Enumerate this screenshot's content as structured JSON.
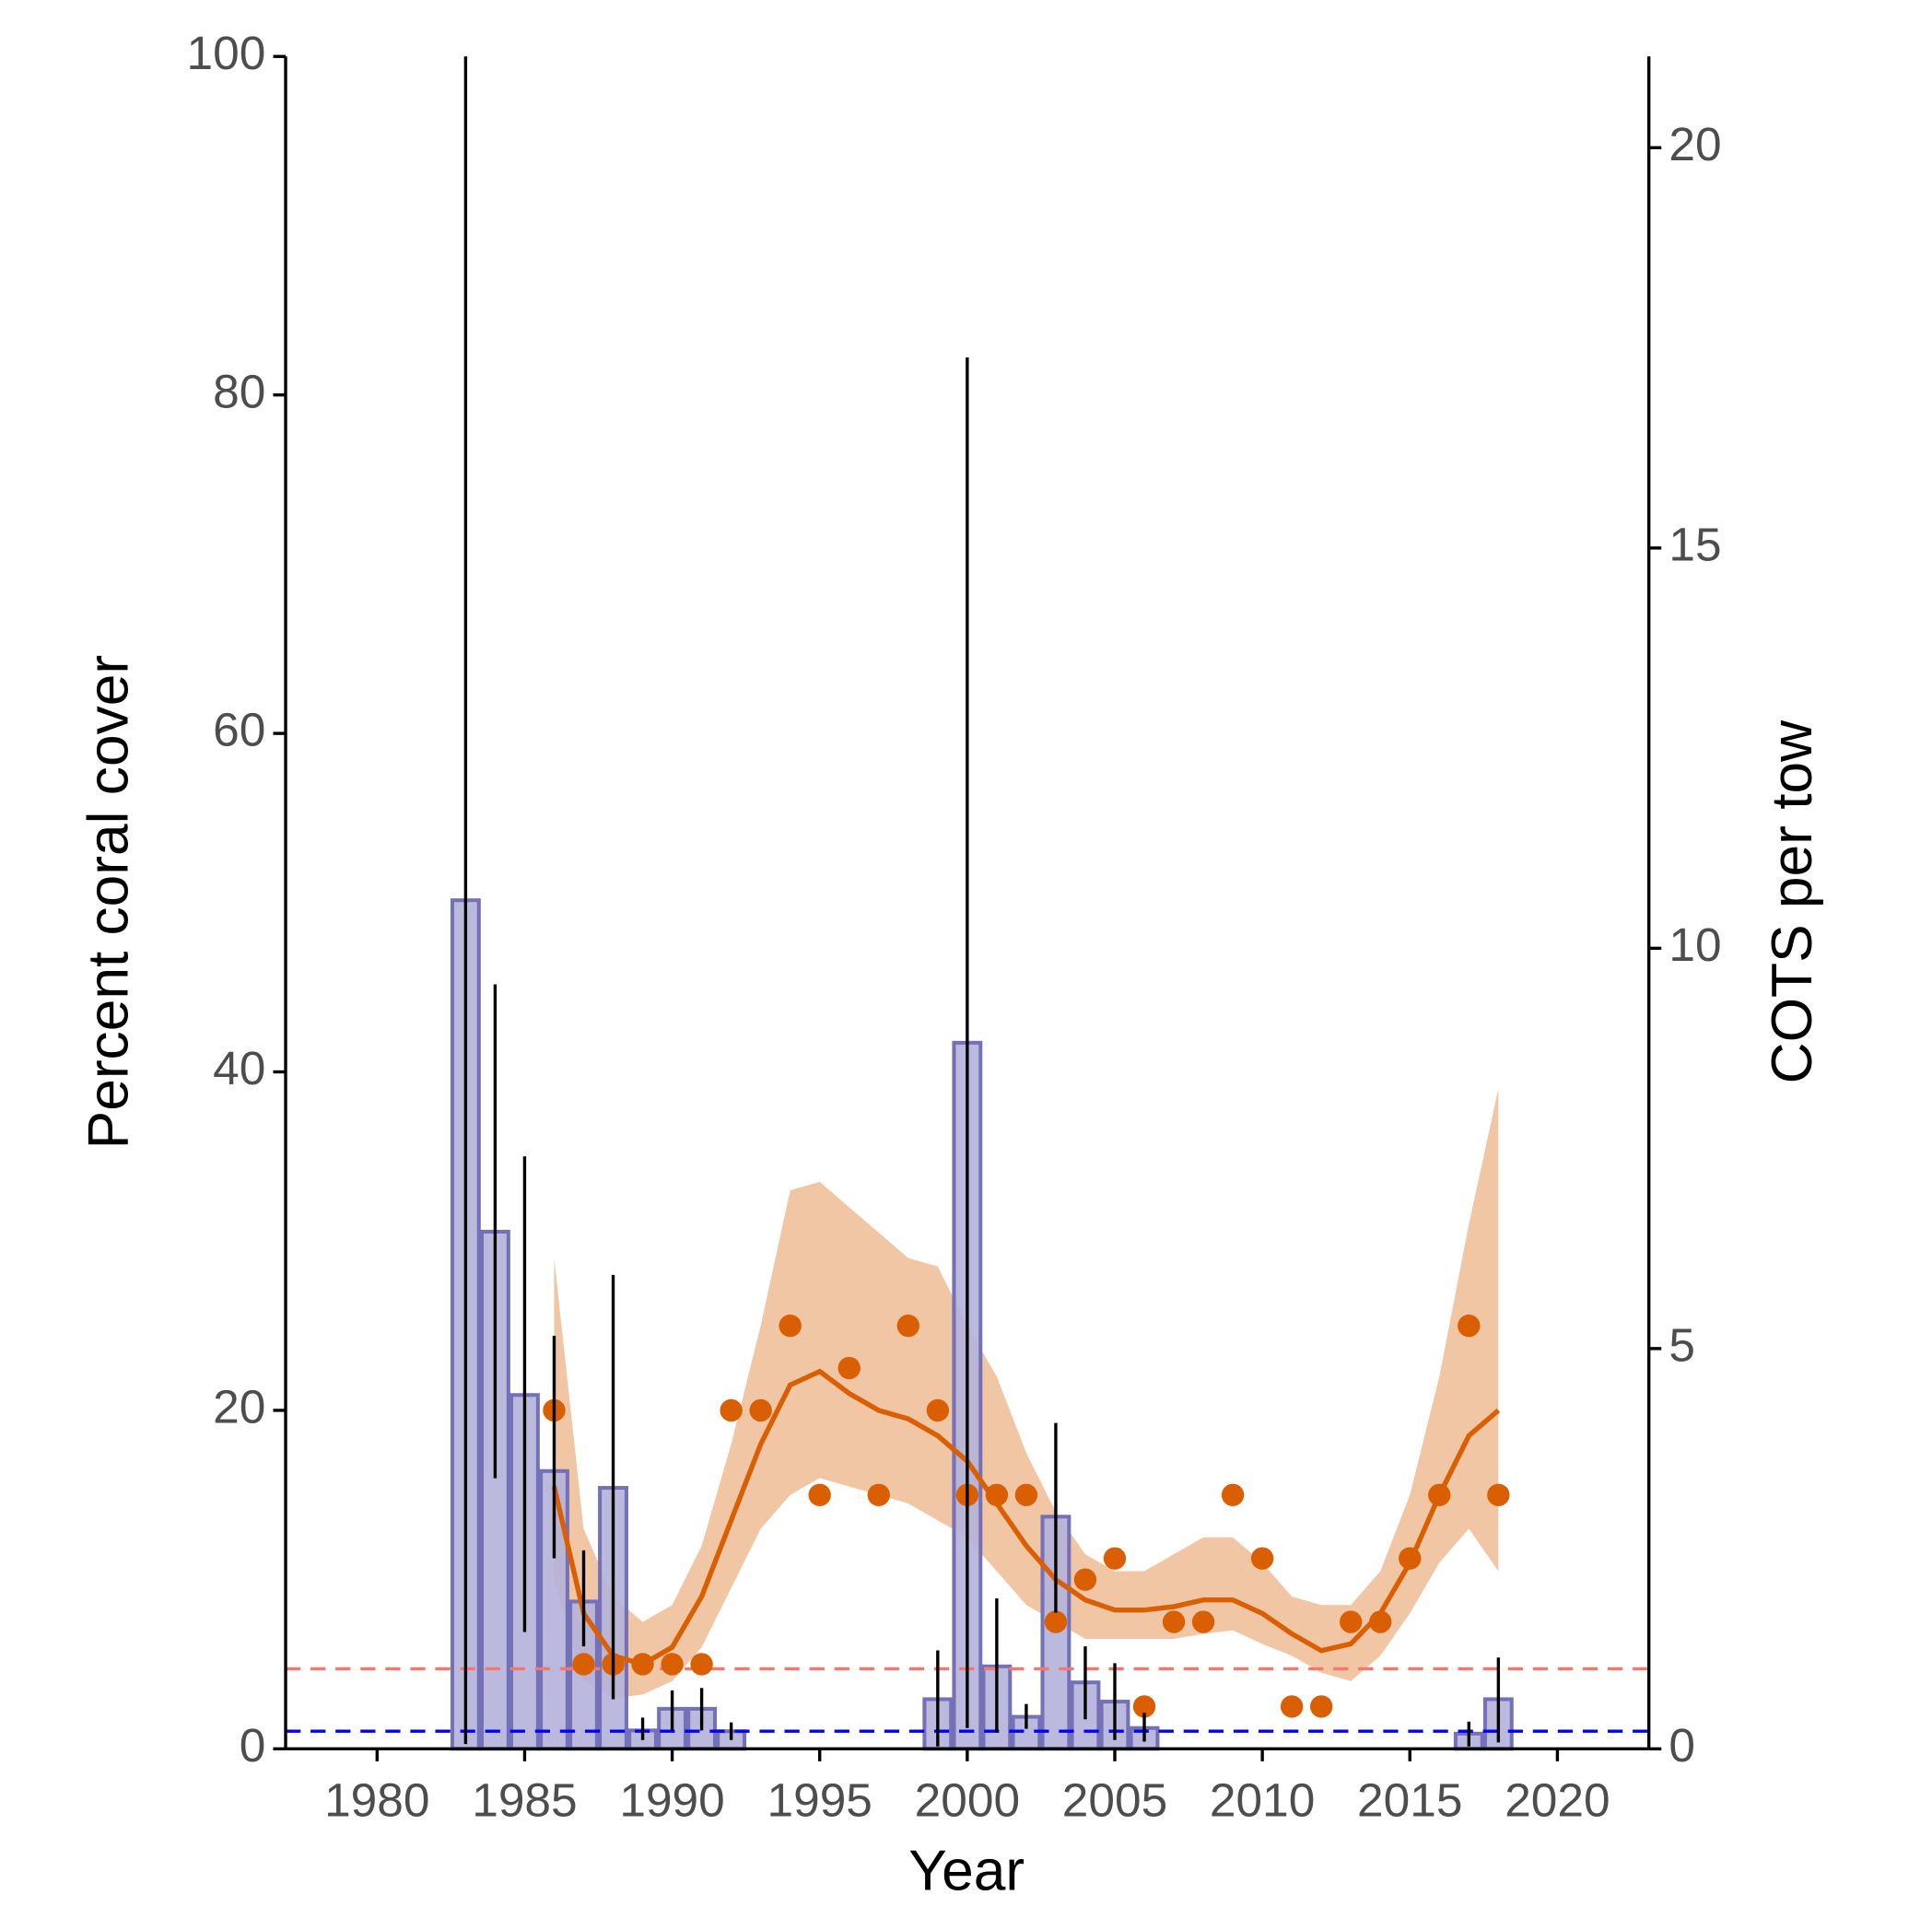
{
  "chart_data": {
    "type": "combo",
    "x_label": "Year",
    "y_label": "Percent coral cover",
    "y2_label": "COTS per tow",
    "xlim": [
      1976.9,
      2023.1
    ],
    "xticks": [
      1980,
      1985,
      1990,
      1995,
      2000,
      2005,
      2010,
      2015,
      2020
    ],
    "ylim": [
      0,
      100
    ],
    "yticks": [
      0,
      20,
      40,
      60,
      80,
      100
    ],
    "y2lim": [
      0,
      21.14
    ],
    "y2ticks": [
      0,
      5,
      10,
      15,
      20
    ],
    "cots": {
      "axis": "y2",
      "color": "#b4b1da",
      "edgecolor": "#7571b8",
      "x": [
        1983,
        1984,
        1985,
        1986,
        1987,
        1988,
        1989,
        1990,
        1991,
        1992,
        1999,
        2000,
        2001,
        2002,
        2003,
        2004,
        2005,
        2006,
        2017,
        2018
      ],
      "values": [
        10.6,
        6.46,
        4.42,
        3.47,
        1.84,
        3.26,
        0.23,
        0.5,
        0.5,
        0.22,
        0.62,
        8.82,
        1.03,
        0.4,
        2.9,
        0.83,
        0.59,
        0.26,
        0.19,
        0.62
      ],
      "low": [
        0.06,
        3.38,
        1.46,
        2.38,
        1.28,
        0.62,
        0.11,
        0.23,
        0.23,
        0.11,
        0.03,
        0.26,
        0.2,
        0.25,
        1.7,
        0.37,
        0.11,
        0.09,
        0.03,
        0.08
      ],
      "high": [
        21.14,
        9.55,
        7.4,
        5.16,
        2.48,
        5.92,
        0.39,
        0.73,
        0.76,
        0.33,
        1.23,
        17.38,
        1.88,
        0.56,
        4.07,
        1.28,
        1.07,
        0.45,
        0.34,
        1.14
      ]
    },
    "coral": {
      "color": "#d95f02",
      "x": [
        1986,
        1987,
        1988,
        1989,
        1990,
        1991,
        1992,
        1993,
        1994,
        1995,
        1996,
        1997,
        1998,
        1999,
        2000,
        2001,
        2002,
        2003,
        2004,
        2005,
        2006,
        2007,
        2008,
        2009,
        2010,
        2011,
        2012,
        2013,
        2014,
        2015,
        2016,
        2017,
        2018
      ],
      "values": [
        20,
        5,
        5,
        5,
        5,
        5,
        20,
        20,
        25,
        15,
        22.5,
        15,
        25,
        20,
        15,
        15,
        15,
        7.5,
        10,
        11.25,
        2.5,
        7.5,
        7.5,
        15,
        11.25,
        2.5,
        2.5,
        7.5,
        7.5,
        11.25,
        15,
        25,
        15
      ]
    },
    "trend": {
      "color": "#d95f02",
      "band_color": "#f0c09b",
      "x": [
        1986,
        1987,
        1988,
        1989,
        1990,
        1991,
        1992,
        1993,
        1994,
        1995,
        1996,
        1997,
        1998,
        1999,
        2000,
        2001,
        2002,
        2003,
        2004,
        2005,
        2006,
        2007,
        2008,
        2009,
        2010,
        2011,
        2012,
        2013,
        2014,
        2015,
        2016,
        2017,
        2018
      ],
      "values": [
        15.5,
        8,
        5.5,
        5,
        6,
        9,
        13.5,
        18,
        21.5,
        22.3,
        21,
        20,
        19.5,
        18.5,
        17,
        14.5,
        12,
        10,
        8.8,
        8.2,
        8.2,
        8.4,
        8.8,
        8.8,
        8,
        6.8,
        5.8,
        6.2,
        8,
        11,
        15,
        18.5,
        20
      ],
      "lower": [
        10,
        4,
        3,
        3.2,
        4,
        6,
        9.5,
        13,
        15,
        16,
        15.5,
        15,
        14.5,
        13.5,
        12.5,
        10.5,
        8.5,
        7.5,
        6.5,
        6.5,
        6.5,
        6.5,
        6.8,
        7,
        6.2,
        5.5,
        4.5,
        4,
        5.5,
        8,
        11,
        13,
        10.5
      ],
      "upper": [
        29,
        13,
        9,
        7.5,
        8.5,
        12,
        18,
        25,
        33,
        33.5,
        32,
        30.5,
        29,
        28.5,
        25,
        22,
        17.5,
        14,
        11.5,
        10.5,
        10.5,
        11.5,
        12.5,
        12.5,
        11,
        9,
        8.5,
        8.5,
        10.5,
        15,
        22,
        31,
        39
      ]
    },
    "hlines": [
      {
        "value": 1,
        "axis": "y2",
        "color": "#f8766d"
      },
      {
        "value": 0.22,
        "axis": "y2",
        "color": "#0000ff"
      }
    ]
  }
}
